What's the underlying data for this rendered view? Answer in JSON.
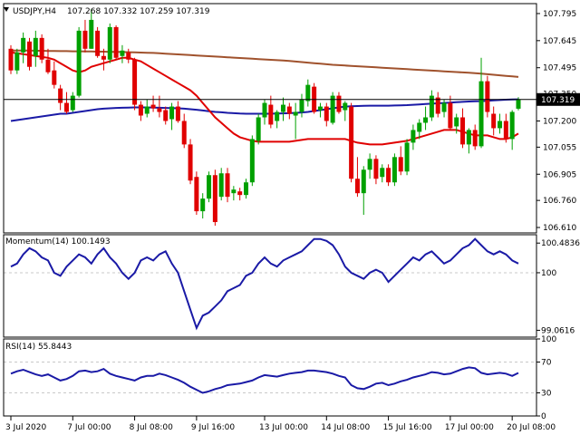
{
  "header": {
    "symbol": "USDJPY,H4",
    "ohlc": "107.268 107.332 107.259 107.319",
    "momentum": "Momentum(14) 100.1493",
    "rsi": "RSI(14) 55.8443"
  },
  "colors": {
    "bull": "#00a000",
    "bear": "#e00000",
    "ma_fast": "#e00000",
    "ma_mid": "#1a1aa6",
    "ma_slow": "#a0522d",
    "indicator": "#1a1aa6",
    "grid": "#c8c8c8"
  },
  "chart_data": [
    {
      "type": "candlestick",
      "title": "USDJPY,H4",
      "ylim": [
        106.58,
        107.85
      ],
      "y_ticks": [
        "107.795",
        "107.645",
        "107.495",
        "107.350",
        "107.200",
        "107.055",
        "106.905",
        "106.760",
        "106.610"
      ],
      "current_price": 107.319,
      "current_price_label": "107.319",
      "x_labels": [
        "3 Jul 2020",
        "7 Jul 00:00",
        "8 Jul 08:00",
        "9 Jul 16:00",
        "13 Jul 00:00",
        "14 Jul 08:00",
        "15 Jul 16:00",
        "17 Jul 00:00",
        "20 Jul 08:00"
      ],
      "x_label_index": [
        0,
        10,
        20,
        30,
        41,
        51,
        61,
        71,
        81
      ],
      "candles": [
        [
          107.6,
          107.62,
          107.46,
          107.48
        ],
        [
          107.48,
          107.6,
          107.46,
          107.58
        ],
        [
          107.58,
          107.69,
          107.52,
          107.66
        ],
        [
          107.64,
          107.66,
          107.48,
          107.5
        ],
        [
          107.56,
          107.7,
          107.5,
          107.66
        ],
        [
          107.66,
          107.68,
          107.52,
          107.54
        ],
        [
          107.54,
          107.6,
          107.46,
          107.47
        ],
        [
          107.48,
          107.53,
          107.38,
          107.4
        ],
        [
          107.38,
          107.4,
          107.26,
          107.3
        ],
        [
          107.3,
          107.36,
          107.24,
          107.25
        ],
        [
          107.26,
          107.36,
          107.25,
          107.34
        ],
        [
          107.34,
          107.72,
          107.33,
          107.7
        ],
        [
          107.7,
          107.76,
          107.58,
          107.6
        ],
        [
          107.6,
          107.82,
          107.6,
          107.76
        ],
        [
          107.7,
          107.72,
          107.55,
          107.56
        ],
        [
          107.56,
          107.6,
          107.48,
          107.54
        ],
        [
          107.54,
          107.74,
          107.52,
          107.72
        ],
        [
          107.72,
          107.73,
          107.54,
          107.55
        ],
        [
          107.56,
          107.62,
          107.52,
          107.59
        ],
        [
          107.58,
          107.6,
          107.52,
          107.54
        ],
        [
          107.54,
          107.55,
          107.26,
          107.29
        ],
        [
          107.29,
          107.31,
          107.2,
          107.23
        ],
        [
          107.24,
          107.32,
          107.22,
          107.28
        ],
        [
          107.29,
          107.34,
          107.25,
          107.27
        ],
        [
          107.27,
          107.34,
          107.22,
          107.25
        ],
        [
          107.26,
          107.28,
          107.18,
          107.2
        ],
        [
          107.21,
          107.3,
          107.15,
          107.28
        ],
        [
          107.28,
          107.31,
          107.19,
          107.2
        ],
        [
          107.2,
          107.24,
          107.05,
          107.07
        ],
        [
          107.07,
          107.1,
          106.85,
          106.87
        ],
        [
          106.89,
          106.92,
          106.68,
          106.7
        ],
        [
          106.7,
          106.8,
          106.66,
          106.77
        ],
        [
          106.77,
          106.92,
          106.75,
          106.9
        ],
        [
          106.9,
          106.93,
          106.62,
          106.64
        ],
        [
          106.78,
          106.94,
          106.76,
          106.91
        ],
        [
          106.91,
          106.94,
          106.75,
          106.78
        ],
        [
          106.8,
          106.84,
          106.76,
          106.82
        ],
        [
          106.81,
          106.83,
          106.76,
          106.79
        ],
        [
          106.79,
          106.88,
          106.77,
          106.86
        ],
        [
          106.86,
          107.12,
          106.84,
          107.1
        ],
        [
          107.09,
          107.24,
          107.07,
          107.22
        ],
        [
          107.22,
          107.32,
          107.18,
          107.3
        ],
        [
          107.29,
          107.34,
          107.16,
          107.18
        ],
        [
          107.2,
          107.26,
          107.16,
          107.25
        ],
        [
          107.25,
          107.33,
          107.2,
          107.29
        ],
        [
          107.28,
          107.3,
          107.21,
          107.24
        ],
        [
          107.23,
          107.3,
          107.1,
          107.25
        ],
        [
          107.25,
          107.35,
          107.22,
          107.32
        ],
        [
          107.31,
          107.43,
          107.28,
          107.4
        ],
        [
          107.39,
          107.41,
          107.24,
          107.25
        ],
        [
          107.26,
          107.3,
          107.22,
          107.28
        ],
        [
          107.28,
          107.3,
          107.17,
          107.2
        ],
        [
          107.19,
          107.36,
          107.18,
          107.34
        ],
        [
          107.34,
          107.36,
          107.24,
          107.25
        ],
        [
          107.26,
          107.31,
          107.2,
          107.3
        ],
        [
          107.28,
          107.3,
          106.86,
          106.88
        ],
        [
          106.88,
          107.0,
          106.78,
          106.8
        ],
        [
          106.8,
          106.95,
          106.68,
          106.93
        ],
        [
          106.93,
          107.02,
          106.88,
          106.99
        ],
        [
          106.99,
          107.01,
          106.85,
          106.88
        ],
        [
          106.89,
          106.96,
          106.86,
          106.94
        ],
        [
          106.94,
          106.96,
          106.84,
          106.86
        ],
        [
          106.86,
          107.02,
          106.84,
          107.0
        ],
        [
          107.0,
          107.06,
          106.9,
          106.92
        ],
        [
          106.92,
          107.1,
          106.9,
          107.08
        ],
        [
          107.08,
          107.18,
          107.04,
          107.15
        ],
        [
          107.14,
          107.21,
          107.1,
          107.19
        ],
        [
          107.19,
          107.28,
          107.15,
          107.22
        ],
        [
          107.22,
          107.37,
          107.2,
          107.34
        ],
        [
          107.33,
          107.36,
          107.22,
          107.24
        ],
        [
          107.25,
          107.32,
          107.22,
          107.3
        ],
        [
          107.3,
          107.34,
          107.15,
          107.16
        ],
        [
          107.17,
          107.24,
          107.13,
          107.22
        ],
        [
          107.22,
          107.27,
          107.05,
          107.07
        ],
        [
          107.07,
          107.16,
          107.02,
          107.15
        ],
        [
          107.15,
          107.18,
          107.04,
          107.06
        ],
        [
          107.06,
          107.55,
          107.05,
          107.42
        ],
        [
          107.42,
          107.45,
          107.22,
          107.25
        ],
        [
          107.24,
          107.28,
          107.12,
          107.16
        ],
        [
          107.16,
          107.24,
          107.13,
          107.2
        ],
        [
          107.2,
          107.24,
          107.08,
          107.1
        ],
        [
          107.1,
          107.26,
          107.04,
          107.25
        ],
        [
          107.268,
          107.332,
          107.259,
          107.319
        ]
      ],
      "ma_fast": [
        107.58,
        107.575,
        107.57,
        107.565,
        107.56,
        107.555,
        107.55,
        107.54,
        107.52,
        107.5,
        107.48,
        107.47,
        107.48,
        107.5,
        107.51,
        107.52,
        107.53,
        107.54,
        107.55,
        107.55,
        107.54,
        107.53,
        107.51,
        107.49,
        107.47,
        107.45,
        107.43,
        107.41,
        107.39,
        107.37,
        107.34,
        107.3,
        107.26,
        107.22,
        107.19,
        107.16,
        107.13,
        107.11,
        107.1,
        107.09,
        107.085,
        107.085,
        107.085,
        107.085,
        107.085,
        107.085,
        107.09,
        107.095,
        107.1,
        107.1,
        107.1,
        107.1,
        107.1,
        107.1,
        107.1,
        107.09,
        107.08,
        107.075,
        107.07,
        107.07,
        107.07,
        107.075,
        107.08,
        107.085,
        107.09,
        107.1,
        107.11,
        107.12,
        107.13,
        107.14,
        107.15,
        107.15,
        107.15,
        107.14,
        107.13,
        107.12,
        107.12,
        107.12,
        107.11,
        107.1,
        107.1,
        107.11,
        107.13
      ],
      "ma_mid": [
        107.2,
        107.205,
        107.21,
        107.215,
        107.22,
        107.225,
        107.23,
        107.235,
        107.24,
        107.24,
        107.245,
        107.25,
        107.255,
        107.26,
        107.265,
        107.268,
        107.27,
        107.272,
        107.273,
        107.274,
        107.275,
        107.275,
        107.275,
        107.274,
        107.273,
        107.272,
        107.271,
        107.27,
        107.268,
        107.265,
        107.262,
        107.258,
        107.254,
        107.25,
        107.248,
        107.245,
        107.243,
        107.241,
        107.24,
        107.24,
        107.24,
        107.24,
        107.24,
        107.241,
        107.242,
        107.243,
        107.245,
        107.247,
        107.25,
        107.255,
        107.26,
        107.265,
        107.27,
        107.275,
        107.28,
        107.282,
        107.283,
        107.284,
        107.285,
        107.285,
        107.285,
        107.285,
        107.286,
        107.287,
        107.288,
        107.29,
        107.292,
        107.294,
        107.296,
        107.298,
        107.3,
        107.302,
        107.304,
        107.306,
        107.308,
        107.309,
        107.31,
        107.312,
        107.314,
        107.316,
        107.318,
        107.319,
        107.32
      ],
      "ma_slow": [
        107.59,
        107.59,
        107.59,
        107.59,
        107.589,
        107.589,
        107.588,
        107.588,
        107.587,
        107.587,
        107.586,
        107.586,
        107.585,
        107.585,
        107.584,
        107.584,
        107.583,
        107.583,
        107.582,
        107.581,
        107.58,
        107.579,
        107.578,
        107.577,
        107.575,
        107.573,
        107.571,
        107.569,
        107.567,
        107.565,
        107.563,
        107.561,
        107.559,
        107.557,
        107.555,
        107.553,
        107.551,
        107.549,
        107.547,
        107.545,
        107.543,
        107.541,
        107.539,
        107.537,
        107.535,
        107.532,
        107.529,
        107.526,
        107.523,
        107.52,
        107.517,
        107.514,
        107.511,
        107.509,
        107.507,
        107.505,
        107.503,
        107.501,
        107.499,
        107.497,
        107.495,
        107.493,
        107.491,
        107.489,
        107.487,
        107.485,
        107.483,
        107.481,
        107.479,
        107.477,
        107.475,
        107.473,
        107.471,
        107.469,
        107.467,
        107.465,
        107.462,
        107.459,
        107.456,
        107.453,
        107.45,
        107.447,
        107.444
      ]
    },
    {
      "type": "line",
      "title": "Momentum(14) 100.1493",
      "ylim": [
        98.95,
        100.62
      ],
      "y_ticks": [
        "100.4836",
        "100",
        "99.0616"
      ],
      "reference_level": 100,
      "values": [
        100.1,
        100.15,
        100.3,
        100.4,
        100.35,
        100.25,
        100.2,
        100.0,
        99.95,
        100.1,
        100.2,
        100.3,
        100.25,
        100.15,
        100.3,
        100.4,
        100.25,
        100.15,
        100.0,
        99.9,
        100.0,
        100.2,
        100.25,
        100.2,
        100.3,
        100.35,
        100.15,
        100.0,
        99.7,
        99.4,
        99.1,
        99.3,
        99.35,
        99.45,
        99.55,
        99.7,
        99.75,
        99.8,
        99.95,
        100.0,
        100.15,
        100.25,
        100.15,
        100.1,
        100.2,
        100.25,
        100.3,
        100.35,
        100.45,
        100.55,
        100.55,
        100.52,
        100.45,
        100.3,
        100.1,
        100.0,
        99.95,
        99.9,
        100.0,
        100.05,
        100.0,
        99.85,
        99.95,
        100.05,
        100.15,
        100.25,
        100.2,
        100.3,
        100.35,
        100.25,
        100.15,
        100.2,
        100.3,
        100.4,
        100.45,
        100.55,
        100.45,
        100.35,
        100.3,
        100.35,
        100.3,
        100.2,
        100.15
      ]
    },
    {
      "type": "line",
      "title": "RSI(14) 55.8443",
      "ylim": [
        0,
        100
      ],
      "y_ticks": [
        "100",
        "70",
        "30",
        "0"
      ],
      "levels": [
        70,
        30
      ],
      "values": [
        55,
        58,
        60,
        57,
        54,
        52,
        54,
        50,
        46,
        48,
        52,
        58,
        59,
        57,
        58,
        61,
        55,
        52,
        50,
        48,
        46,
        50,
        52,
        52,
        55,
        53,
        50,
        47,
        43,
        38,
        34,
        30,
        32,
        35,
        37,
        40,
        41,
        42,
        44,
        46,
        50,
        53,
        52,
        51,
        53,
        55,
        56,
        57,
        59,
        59,
        58,
        57,
        55,
        52,
        50,
        40,
        36,
        35,
        38,
        42,
        43,
        40,
        42,
        45,
        47,
        50,
        52,
        54,
        57,
        56,
        54,
        55,
        58,
        61,
        63,
        62,
        56,
        54,
        55,
        56,
        55,
        52,
        55.84
      ]
    }
  ]
}
